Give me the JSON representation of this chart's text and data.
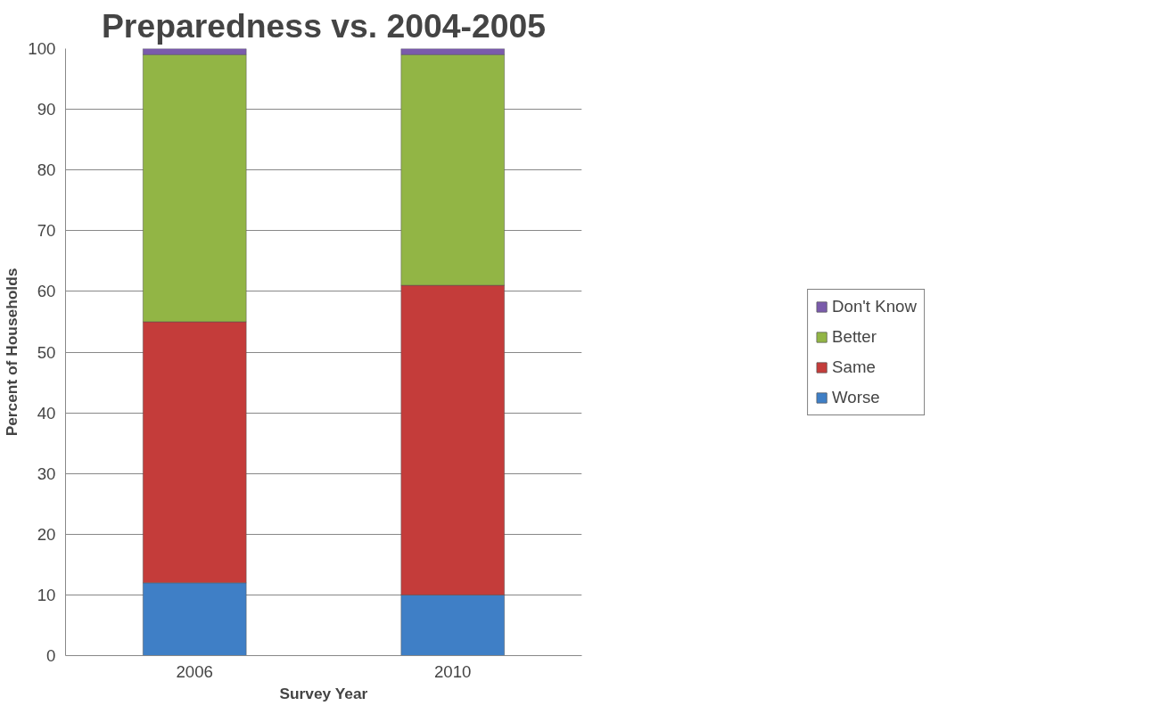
{
  "chart_data": {
    "type": "bar",
    "title": "Preparedness vs. 2004-2005",
    "xlabel": "Survey Year",
    "ylabel": "Percent of Households",
    "categories": [
      "2006",
      "2010"
    ],
    "stacked": true,
    "series": [
      {
        "name": "Worse",
        "color": "#3f7fc6",
        "values": [
          12,
          10
        ]
      },
      {
        "name": "Same",
        "color": "#c43c3a",
        "values": [
          43,
          51
        ]
      },
      {
        "name": "Better",
        "color": "#92b545",
        "values": [
          44,
          38
        ]
      },
      {
        "name": "Don't Know",
        "color": "#7a5bab",
        "values": [
          1,
          1
        ]
      }
    ],
    "ylim": [
      0,
      100
    ],
    "yticks": [
      0,
      10,
      20,
      30,
      40,
      50,
      60,
      70,
      80,
      90,
      100
    ],
    "grid": "y",
    "legend": "right"
  }
}
